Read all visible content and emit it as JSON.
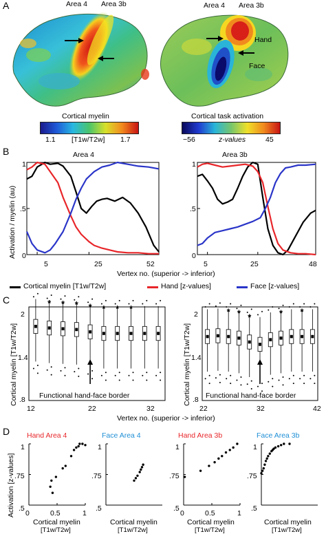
{
  "panelA": {
    "label": "A",
    "brain_left": {
      "area4": "Area 4",
      "area3b": "Area 3b"
    },
    "brain_right": {
      "area4": "Area 4",
      "area3b": "Area 3b",
      "hand": "Hand",
      "face": "Face"
    },
    "colorbar_left": {
      "title": "Cortical myelin",
      "min": "1.1",
      "unit": "[T1w/T2w]",
      "max": "1.7"
    },
    "colorbar_right": {
      "title": "Cortical task activation",
      "min": "−56",
      "unit": "z-values",
      "max": "45"
    }
  },
  "panelB": {
    "label": "B",
    "ylabel": "Activation / myelin (au)",
    "xlabel": "Vertex no. (superior -> inferior)",
    "left": {
      "title": "Area 4",
      "xticks": [
        "5",
        "25",
        "52"
      ],
      "yticks": [
        "1",
        ".5",
        "0"
      ]
    },
    "right": {
      "title": "Area 3b",
      "xticks": [
        "5",
        "25",
        "48"
      ],
      "yticks": [
        "1",
        ".5",
        "0"
      ]
    },
    "legend": [
      {
        "label": "Cortical myelin [T1w/T2w]",
        "color": "#000000"
      },
      {
        "label": "Hand [z-values]",
        "color": "#e8262a"
      },
      {
        "label": "Face [z-values]",
        "color": "#2a35c8"
      }
    ]
  },
  "panelC": {
    "label": "C",
    "ylabel": "Cortical myelin [T1w/T2w]",
    "xlabel": "Vertex no. (superior -> inferior)",
    "annotation": "Functional hand-face border",
    "left": {
      "yticks": [
        "2",
        "1.4",
        ".8"
      ],
      "xticks": [
        "12",
        "22",
        "32"
      ]
    },
    "right": {
      "yticks": [
        "2",
        "1.4",
        ".8"
      ],
      "xticks": [
        "22",
        "32",
        "42"
      ]
    },
    "star": "*"
  },
  "panelD": {
    "label": "D",
    "ylabel": "Activation [z-values]",
    "xlabel_line1": "Cortical myelin",
    "xlabel_line2": "[T1w/T2w]",
    "yticks": [
      "1",
      ".75",
      ".5"
    ],
    "xticks": [
      "0",
      "0.5",
      "1"
    ],
    "plots": [
      {
        "title_a": "Hand",
        "title_b": "Area 4",
        "color_a": "#e8262a",
        "color_b": "#e8262a"
      },
      {
        "title_a": "Face",
        "title_b": "Area 4",
        "color_a": "#1f8fd6",
        "color_b": "#1f8fd6"
      },
      {
        "title_a": "Hand",
        "title_b": "Area 3b",
        "color_a": "#e8262a",
        "color_b": "#e8262a"
      },
      {
        "title_a": "Face",
        "title_b": "Area 3b",
        "color_a": "#1f8fd6",
        "color_b": "#1f8fd6"
      }
    ]
  },
  "chart_data": [
    {
      "type": "line",
      "title": "Area 4",
      "xlabel": "Vertex no. (superior -> inferior)",
      "ylabel": "Activation / myelin (au)",
      "xlim": [
        1,
        52
      ],
      "ylim": [
        0,
        1
      ],
      "series": [
        {
          "name": "Cortical myelin [T1w/T2w]",
          "x": [
            1,
            3,
            5,
            8,
            10,
            13,
            15,
            18,
            20,
            22,
            24,
            26,
            28,
            30,
            32,
            35,
            38,
            41,
            44,
            47,
            50,
            52
          ],
          "y": [
            0.82,
            0.85,
            0.95,
            1.0,
            0.98,
            0.99,
            0.96,
            0.85,
            0.68,
            0.5,
            0.45,
            0.52,
            0.58,
            0.6,
            0.61,
            0.58,
            0.62,
            0.56,
            0.45,
            0.3,
            0.1,
            0.03
          ]
        },
        {
          "name": "Hand [z-values]",
          "x": [
            1,
            3,
            5,
            8,
            10,
            13,
            15,
            18,
            20,
            22,
            25,
            27,
            30,
            33,
            36,
            40,
            44,
            48,
            52
          ],
          "y": [
            0.92,
            0.95,
            1.0,
            0.98,
            0.9,
            0.78,
            0.62,
            0.42,
            0.3,
            0.22,
            0.14,
            0.1,
            0.07,
            0.05,
            0.03,
            0.02,
            0.02,
            0.01,
            0.01
          ]
        },
        {
          "name": "Face [z-values]",
          "x": [
            1,
            3,
            5,
            8,
            10,
            12,
            15,
            18,
            20,
            22,
            24,
            27,
            30,
            33,
            36,
            40,
            44,
            48,
            52
          ],
          "y": [
            0.25,
            0.12,
            0.05,
            0.02,
            0.05,
            0.12,
            0.25,
            0.45,
            0.6,
            0.72,
            0.82,
            0.9,
            0.95,
            0.97,
            1.0,
            0.98,
            0.96,
            0.95,
            0.93
          ]
        }
      ]
    },
    {
      "type": "line",
      "title": "Area 3b",
      "xlabel": "Vertex no. (superior -> inferior)",
      "ylabel": "Activation / myelin (au)",
      "xlim": [
        1,
        48
      ],
      "ylim": [
        0,
        1
      ],
      "series": [
        {
          "name": "Cortical myelin [T1w/T2w]",
          "x": [
            1,
            3,
            5,
            7,
            9,
            11,
            13,
            15,
            17,
            19,
            21,
            23,
            25,
            27,
            29,
            31,
            33,
            35,
            37,
            40,
            43,
            46,
            48
          ],
          "y": [
            0.85,
            0.87,
            0.8,
            0.72,
            0.6,
            0.55,
            0.57,
            0.6,
            0.72,
            0.85,
            0.95,
            1.0,
            0.98,
            0.62,
            0.28,
            0.1,
            0.02,
            0.0,
            0.05,
            0.2,
            0.35,
            0.45,
            0.48
          ]
        },
        {
          "name": "Hand [z-values]",
          "x": [
            1,
            3,
            5,
            8,
            11,
            14,
            17,
            20,
            23,
            25,
            27,
            29,
            31,
            33,
            35,
            38,
            41,
            44,
            48
          ],
          "y": [
            0.95,
            0.98,
            0.99,
            0.97,
            0.95,
            0.96,
            0.97,
            0.98,
            0.96,
            0.9,
            0.78,
            0.52,
            0.28,
            0.12,
            0.05,
            0.02,
            0.01,
            0.01,
            0.0
          ]
        },
        {
          "name": "Face [z-values]",
          "x": [
            1,
            3,
            5,
            8,
            11,
            14,
            17,
            20,
            23,
            26,
            28,
            30,
            32,
            34,
            36,
            38,
            41,
            44,
            48
          ],
          "y": [
            0.1,
            0.12,
            0.18,
            0.24,
            0.26,
            0.28,
            0.3,
            0.33,
            0.36,
            0.4,
            0.5,
            0.62,
            0.78,
            0.88,
            0.94,
            0.95,
            0.97,
            0.97,
            0.98
          ]
        }
      ]
    },
    {
      "type": "box",
      "title": "",
      "xlabel": "Vertex no. (superior -> inferior)",
      "ylabel": "Cortical myelin [T1w/T2w]",
      "ylim": [
        0.8,
        2.0
      ],
      "x": [
        13,
        15,
        17,
        19,
        21,
        23,
        25,
        27,
        29,
        31
      ],
      "median": [
        1.75,
        1.73,
        1.72,
        1.71,
        1.68,
        1.66,
        1.66,
        1.66,
        1.66,
        1.66
      ],
      "significant": [
        false,
        true,
        true,
        true,
        true,
        true,
        true,
        true,
        false,
        false
      ]
    },
    {
      "type": "box",
      "title": "",
      "xlabel": "Vertex no. (superior -> inferior)",
      "ylabel": "Cortical myelin [T1w/T2w]",
      "ylim": [
        0.8,
        2.0
      ],
      "x": [
        22,
        24,
        26,
        28,
        30,
        32,
        34,
        36,
        38,
        40,
        42
      ],
      "median": [
        1.62,
        1.63,
        1.62,
        1.6,
        1.55,
        1.52,
        1.58,
        1.6,
        1.62,
        1.62,
        1.62
      ],
      "significant": [
        false,
        false,
        true,
        true,
        true,
        false,
        false,
        true,
        false,
        true,
        false
      ]
    },
    {
      "type": "scatter",
      "title": "Hand Area 4",
      "xlim": [
        0,
        1
      ],
      "ylim": [
        0.5,
        1
      ],
      "x": [
        0.38,
        0.4,
        0.42,
        0.48,
        0.6,
        0.65,
        0.75,
        0.8,
        0.84,
        0.88,
        0.9,
        0.95,
        1.0
      ],
      "y": [
        0.65,
        0.7,
        0.6,
        0.73,
        0.8,
        0.82,
        0.9,
        0.95,
        0.97,
        0.98,
        1.0,
        1.0,
        0.99
      ]
    },
    {
      "type": "scatter",
      "title": "Face Area 4",
      "xlim": [
        0,
        1
      ],
      "ylim": [
        0.5,
        1
      ],
      "x": [
        0.5,
        0.53,
        0.56,
        0.6,
        0.62,
        0.64,
        0.66
      ],
      "y": [
        0.7,
        0.72,
        0.74,
        0.77,
        0.79,
        0.81,
        0.83
      ]
    },
    {
      "type": "scatter",
      "title": "Hand Area 3b",
      "xlim": [
        0,
        1
      ],
      "ylim": [
        0.5,
        1
      ],
      "x": [
        0.02,
        0.3,
        0.45,
        0.55,
        0.62,
        0.68,
        0.75,
        0.82,
        0.88,
        0.95
      ],
      "y": [
        0.73,
        0.78,
        0.82,
        0.85,
        0.88,
        0.9,
        0.93,
        0.95,
        0.97,
        1.0
      ]
    },
    {
      "type": "scatter",
      "title": "Face Area 3b",
      "xlim": [
        0,
        1
      ],
      "ylim": [
        0.5,
        1
      ],
      "x": [
        0.0,
        0.02,
        0.04,
        0.06,
        0.08,
        0.1,
        0.12,
        0.15,
        0.18,
        0.2,
        0.22,
        0.25,
        0.3,
        0.35,
        0.4,
        0.5
      ],
      "y": [
        0.76,
        0.78,
        0.8,
        0.83,
        0.86,
        0.88,
        0.9,
        0.92,
        0.94,
        0.95,
        0.96,
        0.97,
        0.98,
        0.99,
        1.0,
        1.0
      ]
    }
  ]
}
